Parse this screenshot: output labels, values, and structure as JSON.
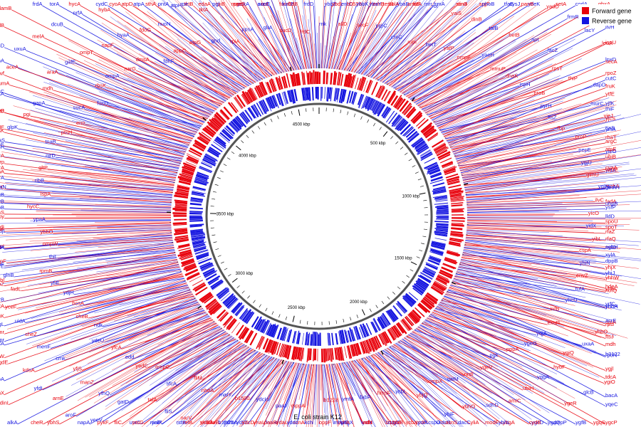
{
  "diagram": {
    "title": "E. coli strain K12",
    "genome_length_kbp": 4640,
    "colors": {
      "forward": "#e8000b",
      "reverse": "#1414e0",
      "backbone": "#555555",
      "tick": "#000000"
    },
    "legend": [
      {
        "label": "Forward gene",
        "color": "#e8000b"
      },
      {
        "label": "Reverse gene",
        "color": "#1414e0"
      }
    ],
    "tick_labels": [
      {
        "kbp": 500,
        "text": "500 kbp"
      },
      {
        "kbp": 1000,
        "text": "1000 kbp"
      },
      {
        "kbp": 1500,
        "text": "1500 kbp"
      },
      {
        "kbp": 2000,
        "text": "2000 kbp"
      },
      {
        "kbp": 2500,
        "text": "2500 kbp"
      },
      {
        "kbp": 3000,
        "text": "3000 kbp"
      },
      {
        "kbp": 3500,
        "text": "3500 kbp"
      },
      {
        "kbp": 4000,
        "text": "4000 kbp"
      },
      {
        "kbp": 4500,
        "text": "4500 kbp"
      }
    ],
    "gene_labels": [
      "rnk",
      "ybdE",
      "ybdL",
      "entC",
      "allD",
      "b0538",
      "ybbK",
      "hemB",
      "secF",
      "ybaY",
      "tesB",
      "ybaB",
      "prpC",
      "bolA",
      "amtB",
      "mrr",
      "creC",
      "fixA",
      "frmA",
      "acnB",
      "mtn",
      "rof",
      "dinJ",
      "argF",
      "betT",
      "yaiS",
      "phoB",
      "cysJ",
      "yafP",
      "dinB",
      "tfaE",
      "ydeK",
      "ompF",
      "talB",
      "panB",
      "setA",
      "yaeH",
      "betB",
      "yadD",
      "codA",
      "mmuP",
      "apt",
      "frmR",
      "ghxA",
      "dnaK",
      "lacZ",
      "lacY",
      "nhaA",
      "ispH",
      "rpsT",
      "leuA",
      "ilvH",
      "proB",
      "thiP",
      "lpxD",
      "ispU",
      "pyrH",
      "dapD",
      "rpoZ",
      "secA",
      "ftsZ",
      "murC",
      "fruK",
      "cutC",
      "fbp",
      "yjeJ",
      "yjfK",
      "ytfE",
      "proP",
      "tyrB",
      "yjcS",
      "thiF",
      "pepE",
      "argC",
      "rhaT",
      "yihA",
      "ygjU",
      "ubiB",
      "yieO",
      "atpE",
      "glmU",
      "yidA",
      "wzzE",
      "cyaA",
      "ygiN",
      "mobA",
      "glnA",
      "hemN",
      "ilvC",
      "fadA",
      "uhpB",
      "ysfP",
      "yicO",
      "lldD",
      "spoU",
      "spoT",
      "yidX",
      "rfaZ",
      "rfaQ",
      "mtlD",
      "yibL",
      "sgbH",
      "xylA",
      "yhjX",
      "cspA",
      "dppB",
      "yhiJ",
      "hdeA",
      "yhiN",
      "yhhW",
      "yhhL",
      "yhhA",
      "envZ",
      "hofQ",
      "yrfC",
      "ppiA",
      "tufA",
      "yhdH",
      "rpsl",
      "mdh",
      "yhcD",
      "acrE",
      "ftsJ",
      "rpoN",
      "infB",
      "yhbO",
      "b3122",
      "tdcA",
      "exuR",
      "uxaA",
      "ygjl",
      "bacA",
      "yqjA",
      "ygiQ",
      "ygiO",
      "yqeC",
      "ygeG",
      "hybF",
      "glcB",
      "ygcP",
      "pppA",
      "yqgA",
      "ygeR",
      "ygqS",
      "pgk",
      "ubiH",
      "pepP",
      "ygfB",
      "yqeV",
      "amiC",
      "ygcD",
      "ygdQ",
      "nrdI",
      "sdhD",
      "ybgA",
      "cydB",
      "galM",
      "ybhO",
      "modF",
      "ybhL",
      "ompX",
      "ybiF",
      "dacC",
      "yliA",
      "ybjQ",
      "cspD",
      "kdsB",
      "asnS",
      "ycbL",
      "ycbX",
      "ycdH",
      "ycdI",
      "hmsF",
      "b1028",
      "csgC",
      "grxB",
      "fabF",
      "ycfX",
      "mfd",
      "ndh",
      "ymfA",
      "ycgX",
      "ychA",
      "mhpE",
      "b1228",
      "oppF",
      "kch",
      "acnA",
      "mppA",
      "yddI",
      "ydaL",
      "feaR",
      "paaI",
      "paaB",
      "ynaI",
      "ydfG",
      "ydcU",
      "ydcD",
      "ydhM",
      "uxaB",
      "b1500",
      "b1505",
      "ydeA",
      "relB",
      "maIY",
      "yedO",
      "rstB",
      "yciP",
      "nhoA",
      "narV",
      "malX",
      "uvrC",
      "fliM",
      "fliS",
      "ptsG",
      "pykF",
      "sfcA",
      "talA",
      "fliC",
      "napA",
      "ompC",
      "gatD",
      "yeeV",
      "ybhS",
      "yedC",
      "yfhQ",
      "aroF",
      "cheR",
      "edd",
      "manZ",
      "arnE",
      "alkA",
      "yfcA",
      "yfjS",
      "yfdI",
      "dinI",
      "ydeU",
      "cmk",
      "kdsA",
      "cynX",
      "ndk",
      "menF",
      "ygdE",
      "nuoA",
      "cheB",
      "cheZ",
      "cutA",
      "yhbW",
      "bcsA",
      "uidA",
      "gmr",
      "spr",
      "ydjH",
      "yceF",
      "psuK",
      "yfgL",
      "yfiE",
      "fadL",
      "pyrB",
      "mltA",
      "rpmB",
      "glnB",
      "fabl",
      "ycbZ",
      "thiL",
      "hypF",
      "ycbE",
      "surE",
      "ompW",
      "nlpI",
      "phoH",
      "cydA",
      "ybbO",
      "ydjL",
      "yjbF",
      "yjdI",
      "ypaA",
      "spy",
      "ydhS",
      "hypB",
      "hycC",
      "ilvB",
      "arcB",
      "tolC",
      "lspA",
      "dnaN",
      "gyrA",
      "thrA",
      "ribB",
      "flhA",
      "crp",
      "fabH",
      "gltP",
      "purA",
      "aceE",
      "cysK",
      "nirD",
      "rhaS",
      "malE",
      "treB",
      "tnaB",
      "glpK",
      "metJ",
      "lysC",
      "ptsH",
      "pgi",
      "pfkA",
      "zwf",
      "eno",
      "gapA",
      "fumA",
      "sdhA",
      "sucA",
      "mdh",
      "aceA",
      "glcD",
      "fucO",
      "araA",
      "uxuA",
      "xylB",
      "rbsK",
      "galE",
      "melA",
      "lamB",
      "ompA",
      "ompT",
      "dcuB",
      "frdA",
      "narG",
      "napF",
      "nrfA",
      "torA",
      "dmsA",
      "hyaA",
      "hybA",
      "hycA",
      "fdhF",
      "fdoG",
      "cyoA",
      "cydC",
      "appC",
      "nuoN",
      "atpA",
      "atpD",
      "atpG",
      "atpH",
      "pntA",
      "sthA",
      "gnd",
      "tktA",
      "tktB",
      "rpe",
      "rpiA",
      "rpiB",
      "pgl",
      "edaA",
      "ppsA",
      "pckA",
      "maeB",
      "ppc",
      "gltA",
      "acnB",
      "icd",
      "sucC",
      "sucD",
      "fumC",
      "fumB",
      "frdB",
      "frdC",
      "frdD"
    ]
  }
}
